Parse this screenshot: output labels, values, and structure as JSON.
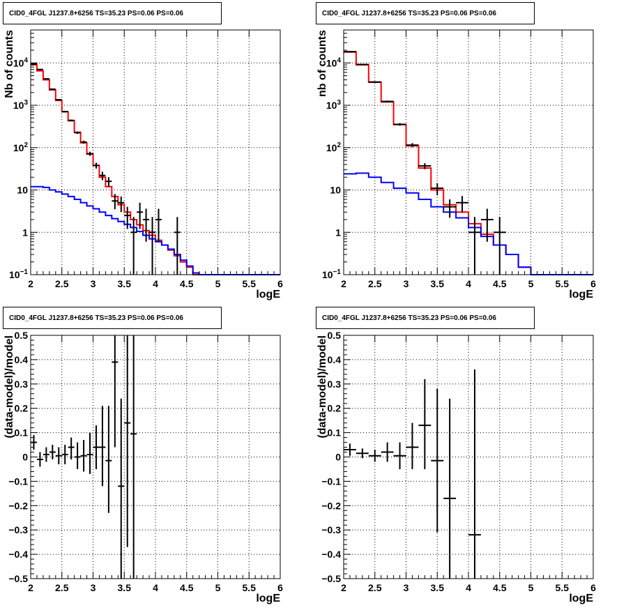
{
  "chart_data": [
    {
      "type": "step",
      "title": "CID0_4FGL J1237.8+6256 TS=35.23 PS=0.06 PS=0.06",
      "xlabel": "logE",
      "ylabel": "Nb of counts",
      "xlim": [
        2,
        6
      ],
      "ylim": [
        0.1,
        60000
      ],
      "yscale": "log",
      "grid": true,
      "xticks": [
        "2",
        "2.5",
        "3",
        "3.5",
        "4",
        "4.5",
        "5",
        "5.5",
        "6"
      ],
      "yticks": [
        "10^-1",
        "1",
        "10",
        "10^2",
        "10^3",
        "10^4"
      ],
      "edges": [
        2.0,
        2.1,
        2.2,
        2.3,
        2.4,
        2.5,
        2.6,
        2.7,
        2.8,
        2.9,
        3.0,
        3.1,
        3.2,
        3.3,
        3.4,
        3.5,
        3.6,
        3.7,
        3.8,
        3.9,
        4.0,
        4.1,
        4.2,
        4.3,
        4.4,
        4.5,
        4.6,
        4.7,
        4.8,
        4.9,
        5.0,
        5.1,
        5.2,
        5.3,
        5.4,
        5.5,
        5.6,
        5.7,
        5.8,
        5.9,
        6.0
      ],
      "series": [
        {
          "style": "step",
          "color": "#ff0000",
          "values": [
            9000,
            6500,
            4000,
            2300,
            1300,
            700,
            430,
            230,
            130,
            70,
            38,
            20,
            12,
            7,
            4.5,
            3,
            2,
            1.5,
            1.1,
            0.85,
            0.65,
            0.5,
            0.38,
            0.28,
            0.2,
            0.15,
            0.1,
            0.1,
            0.1,
            0.1,
            0.1,
            0.1,
            0.1,
            0.1,
            0.1,
            0.1,
            0.1,
            0.1,
            0.1,
            0.1
          ]
        },
        {
          "style": "step",
          "color": "#0000ff",
          "values": [
            12,
            12,
            11.5,
            10,
            9,
            8,
            7,
            6,
            5,
            4.2,
            3.6,
            3.0,
            2.5,
            2.1,
            1.8,
            1.55,
            1.3,
            1.05,
            0.85,
            0.7,
            0.6,
            0.5,
            0.4,
            0.3,
            0.22,
            0.16,
            0.11,
            0.1,
            0.1,
            0.1,
            0.1,
            0.1,
            0.1,
            0.1,
            0.1,
            0.1,
            0.1,
            0.1,
            0.1,
            0.1
          ]
        },
        {
          "style": "errors",
          "color": "#000000",
          "points": [
            {
              "x": 2.05,
              "y": 9500,
              "xerr": 0.05,
              "ylo": 9300,
              "yhi": 9700
            },
            {
              "x": 2.15,
              "y": 7000,
              "xerr": 0.05,
              "ylo": 6850,
              "yhi": 7150
            },
            {
              "x": 2.25,
              "y": 4200,
              "xerr": 0.05,
              "ylo": 4080,
              "yhi": 4320
            },
            {
              "x": 2.35,
              "y": 2400,
              "xerr": 0.05,
              "ylo": 2310,
              "yhi": 2490
            },
            {
              "x": 2.45,
              "y": 1350,
              "xerr": 0.05,
              "ylo": 1290,
              "yhi": 1410
            },
            {
              "x": 2.55,
              "y": 710,
              "xerr": 0.05,
              "ylo": 680,
              "yhi": 740
            },
            {
              "x": 2.65,
              "y": 440,
              "xerr": 0.05,
              "ylo": 420,
              "yhi": 460
            },
            {
              "x": 2.75,
              "y": 225,
              "xerr": 0.05,
              "ylo": 210,
              "yhi": 240
            },
            {
              "x": 2.85,
              "y": 135,
              "xerr": 0.05,
              "ylo": 124,
              "yhi": 146
            },
            {
              "x": 2.95,
              "y": 72,
              "xerr": 0.05,
              "ylo": 64,
              "yhi": 80
            },
            {
              "x": 3.05,
              "y": 38,
              "xerr": 0.05,
              "ylo": 32,
              "yhi": 44
            },
            {
              "x": 3.15,
              "y": 22,
              "xerr": 0.05,
              "ylo": 17,
              "yhi": 27
            },
            {
              "x": 3.25,
              "y": 16,
              "xerr": 0.05,
              "ylo": 12,
              "yhi": 20
            },
            {
              "x": 3.35,
              "y": 5.5,
              "xerr": 0.05,
              "ylo": 3.5,
              "yhi": 8
            },
            {
              "x": 3.45,
              "y": 5,
              "xerr": 0.05,
              "ylo": 3,
              "yhi": 7
            },
            {
              "x": 3.55,
              "y": 2.5,
              "xerr": 0.05,
              "ylo": 1.2,
              "yhi": 4
            },
            {
              "x": 3.65,
              "y": 1,
              "xerr": 0.05,
              "ylo": 0.1,
              "yhi": 2.3
            },
            {
              "x": 3.75,
              "y": 3,
              "xerr": 0.05,
              "ylo": 1.2,
              "yhi": 5
            },
            {
              "x": 3.85,
              "y": 2,
              "xerr": 0.05,
              "ylo": 0.6,
              "yhi": 3.6
            },
            {
              "x": 3.95,
              "y": 1,
              "xerr": 0.05,
              "ylo": 0.1,
              "yhi": 2.3
            },
            {
              "x": 4.05,
              "y": 2,
              "xerr": 0.05,
              "ylo": 0.6,
              "yhi": 3.6
            },
            {
              "x": 4.35,
              "y": 1,
              "xerr": 0.05,
              "ylo": 0.1,
              "yhi": 2.3
            }
          ]
        }
      ]
    },
    {
      "type": "step",
      "title": "CID0_4FGL J1237.8+6256 TS=35.23 PS=0.06 PS=0.06",
      "xlabel": "logE",
      "ylabel": "nb of counts",
      "xlim": [
        2,
        6
      ],
      "ylim": [
        0.1,
        60000
      ],
      "yscale": "log",
      "grid": true,
      "xticks": [
        "2",
        "2.5",
        "3",
        "3.5",
        "4",
        "4.5",
        "5",
        "5.5",
        "6"
      ],
      "yticks": [
        "10^-1",
        "1",
        "10",
        "10^2",
        "10^3",
        "10^4"
      ],
      "edges": [
        2.0,
        2.2,
        2.4,
        2.6,
        2.8,
        3.0,
        3.2,
        3.4,
        3.6,
        3.8,
        4.0,
        4.2,
        4.4,
        4.6,
        4.8,
        5.0,
        5.2,
        5.4,
        5.6,
        5.8,
        6.0
      ],
      "series": [
        {
          "style": "step",
          "color": "#ff0000",
          "values": [
            18000,
            9000,
            3500,
            1200,
            350,
            110,
            33,
            10,
            4.5,
            3.0,
            1.6,
            0.9,
            0.5,
            0.3,
            0.15,
            0.1,
            0.1,
            0.1,
            0.1,
            0.1
          ]
        },
        {
          "style": "step",
          "color": "#0000ff",
          "values": [
            24,
            25,
            20,
            15,
            11,
            8.5,
            6,
            4,
            3,
            2.2,
            1.3,
            0.8,
            0.5,
            0.3,
            0.15,
            0.1,
            0.1,
            0.1,
            0.1,
            0.1
          ]
        },
        {
          "style": "errors",
          "color": "#000000",
          "points": [
            {
              "x": 2.1,
              "y": 18500,
              "xerr": 0.1,
              "ylo": 18200,
              "yhi": 18800
            },
            {
              "x": 2.3,
              "y": 9200,
              "xerr": 0.1,
              "ylo": 9000,
              "yhi": 9400
            },
            {
              "x": 2.5,
              "y": 3550,
              "xerr": 0.1,
              "ylo": 3440,
              "yhi": 3660
            },
            {
              "x": 2.7,
              "y": 1230,
              "xerr": 0.1,
              "ylo": 1170,
              "yhi": 1290
            },
            {
              "x": 2.9,
              "y": 355,
              "xerr": 0.1,
              "ylo": 330,
              "yhi": 380
            },
            {
              "x": 3.1,
              "y": 115,
              "xerr": 0.1,
              "ylo": 102,
              "yhi": 128
            },
            {
              "x": 3.3,
              "y": 37,
              "xerr": 0.1,
              "ylo": 31,
              "yhi": 43
            },
            {
              "x": 3.5,
              "y": 11,
              "xerr": 0.1,
              "ylo": 7.5,
              "yhi": 14.5
            },
            {
              "x": 3.7,
              "y": 4.0,
              "xerr": 0.1,
              "ylo": 2.2,
              "yhi": 6.0
            },
            {
              "x": 3.9,
              "y": 5.0,
              "xerr": 0.1,
              "ylo": 3.0,
              "yhi": 7.2
            },
            {
              "x": 4.1,
              "y": 1.0,
              "xerr": 0.1,
              "ylo": 0.1,
              "yhi": 2.3
            },
            {
              "x": 4.3,
              "y": 2.0,
              "xerr": 0.1,
              "ylo": 0.6,
              "yhi": 3.6
            },
            {
              "x": 4.5,
              "y": 1.0,
              "xerr": 0.1,
              "ylo": 0.1,
              "yhi": 2.3
            }
          ]
        }
      ]
    },
    {
      "type": "scatter",
      "title": "CID0_4FGL J1237.8+6256 TS=35.23 PS=0.06 PS=0.06",
      "xlabel": "logE",
      "ylabel": "(data-model)/model",
      "xlim": [
        2,
        6
      ],
      "ylim": [
        -0.5,
        0.5
      ],
      "yscale": "linear",
      "grid": true,
      "xticks": [
        "2",
        "2.5",
        "3",
        "3.5",
        "4",
        "4.5",
        "5",
        "5.5",
        "6"
      ],
      "yticks": [
        "-0.5",
        "-0.4",
        "-0.3",
        "-0.2",
        "-0.1",
        "0",
        "0.1",
        "0.2",
        "0.3",
        "0.4",
        "0.5"
      ],
      "series": [
        {
          "style": "errors",
          "color": "#000000",
          "points": [
            {
              "x": 2.05,
              "y": 0.06,
              "xerr": 0.05,
              "ylo": 0.03,
              "yhi": 0.09
            },
            {
              "x": 2.15,
              "y": -0.01,
              "xerr": 0.05,
              "ylo": -0.04,
              "yhi": 0.02
            },
            {
              "x": 2.25,
              "y": 0.01,
              "xerr": 0.05,
              "ylo": -0.02,
              "yhi": 0.04
            },
            {
              "x": 2.35,
              "y": 0.02,
              "xerr": 0.05,
              "ylo": -0.01,
              "yhi": 0.05
            },
            {
              "x": 2.45,
              "y": 0.005,
              "xerr": 0.05,
              "ylo": -0.03,
              "yhi": 0.04
            },
            {
              "x": 2.55,
              "y": 0.01,
              "xerr": 0.05,
              "ylo": -0.03,
              "yhi": 0.05
            },
            {
              "x": 2.65,
              "y": 0.04,
              "xerr": 0.05,
              "ylo": -0.01,
              "yhi": 0.08
            },
            {
              "x": 2.75,
              "y": 0.0,
              "xerr": 0.05,
              "ylo": -0.05,
              "yhi": 0.06
            },
            {
              "x": 2.85,
              "y": 0.005,
              "xerr": 0.05,
              "ylo": -0.06,
              "yhi": 0.07
            },
            {
              "x": 2.95,
              "y": 0.01,
              "xerr": 0.05,
              "ylo": -0.07,
              "yhi": 0.1
            },
            {
              "x": 3.05,
              "y": 0.04,
              "xerr": 0.05,
              "ylo": -0.05,
              "yhi": 0.13
            },
            {
              "x": 3.15,
              "y": 0.04,
              "xerr": 0.05,
              "ylo": -0.12,
              "yhi": 0.21
            },
            {
              "x": 3.25,
              "y": -0.015,
              "xerr": 0.05,
              "ylo": -0.23,
              "yhi": 0.21
            },
            {
              "x": 3.35,
              "y": 0.39,
              "xerr": 0.05,
              "ylo": 0.04,
              "yhi": 0.5
            },
            {
              "x": 3.45,
              "y": -0.12,
              "xerr": 0.05,
              "ylo": -0.5,
              "yhi": 0.24
            },
            {
              "x": 3.55,
              "y": 0.14,
              "xerr": 0.05,
              "ylo": -0.37,
              "yhi": 0.5
            },
            {
              "x": 3.65,
              "y": 0.095,
              "xerr": 0.05,
              "ylo": -0.5,
              "yhi": 0.5
            }
          ]
        }
      ]
    },
    {
      "type": "scatter",
      "title": "CID0_4FGL J1237.8+6256 TS=35.23 PS=0.06 PS=0.06",
      "xlabel": "logE",
      "ylabel": "(data-model)/model",
      "xlim": [
        2,
        6
      ],
      "ylim": [
        -0.5,
        0.5
      ],
      "yscale": "linear",
      "grid": true,
      "xticks": [
        "2",
        "2.5",
        "3",
        "3.5",
        "4",
        "4.5",
        "5",
        "5.5",
        "6"
      ],
      "yticks": [
        "-0.5",
        "-0.4",
        "-0.3",
        "-0.2",
        "-0.1",
        "0",
        "0.1",
        "0.2",
        "0.3",
        "0.4",
        "0.5"
      ],
      "series": [
        {
          "style": "errors",
          "color": "#000000",
          "points": [
            {
              "x": 2.1,
              "y": 0.03,
              "xerr": 0.1,
              "ylo": 0.005,
              "yhi": 0.055
            },
            {
              "x": 2.3,
              "y": 0.015,
              "xerr": 0.1,
              "ylo": -0.005,
              "yhi": 0.035
            },
            {
              "x": 2.5,
              "y": 0.005,
              "xerr": 0.1,
              "ylo": -0.02,
              "yhi": 0.03
            },
            {
              "x": 2.7,
              "y": 0.02,
              "xerr": 0.1,
              "ylo": -0.02,
              "yhi": 0.06
            },
            {
              "x": 2.9,
              "y": 0.005,
              "xerr": 0.1,
              "ylo": -0.05,
              "yhi": 0.06
            },
            {
              "x": 3.1,
              "y": 0.04,
              "xerr": 0.1,
              "ylo": -0.05,
              "yhi": 0.14
            },
            {
              "x": 3.3,
              "y": 0.13,
              "xerr": 0.1,
              "ylo": -0.05,
              "yhi": 0.32
            },
            {
              "x": 3.5,
              "y": -0.015,
              "xerr": 0.1,
              "ylo": -0.31,
              "yhi": 0.28
            },
            {
              "x": 3.7,
              "y": -0.17,
              "xerr": 0.1,
              "ylo": -0.5,
              "yhi": 0.24
            },
            {
              "x": 4.1,
              "y": -0.32,
              "xerr": 0.1,
              "ylo": -0.5,
              "yhi": 0.36
            }
          ]
        }
      ]
    }
  ]
}
